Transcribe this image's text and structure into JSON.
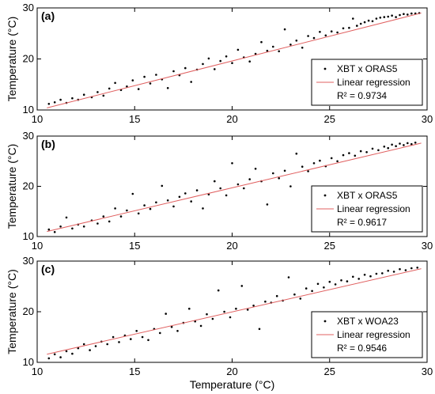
{
  "colors": {
    "points": "#000000",
    "regression": "#e06060",
    "frame": "#000000"
  },
  "chart_data": [
    {
      "type": "scatter",
      "panel_label": "(a)",
      "ylabel": "Temperature (°C)",
      "xlabel": "",
      "xlim": [
        10,
        30
      ],
      "ylim": [
        10,
        30
      ],
      "xticks": [
        "10",
        "15",
        "20",
        "25",
        "30"
      ],
      "yticks": [
        "10",
        "20",
        "30"
      ],
      "legend_position": "bottom-right",
      "series": [
        {
          "name": "XBT x ORAS5",
          "kind": "points",
          "points": [
            [
              10.6,
              11.2
            ],
            [
              10.9,
              11.5
            ],
            [
              11.2,
              12.0
            ],
            [
              11.5,
              11.4
            ],
            [
              11.8,
              12.3
            ],
            [
              12.1,
              12.0
            ],
            [
              12.4,
              13.0
            ],
            [
              12.8,
              12.5
            ],
            [
              13.1,
              13.5
            ],
            [
              13.4,
              12.8
            ],
            [
              13.7,
              14.2
            ],
            [
              14.0,
              15.3
            ],
            [
              14.3,
              13.9
            ],
            [
              14.6,
              14.6
            ],
            [
              14.9,
              15.8
            ],
            [
              15.2,
              14.1
            ],
            [
              15.5,
              16.5
            ],
            [
              15.8,
              15.2
            ],
            [
              16.1,
              16.9
            ],
            [
              16.4,
              16.0
            ],
            [
              16.7,
              14.3
            ],
            [
              17.0,
              17.6
            ],
            [
              17.3,
              16.8
            ],
            [
              17.6,
              18.2
            ],
            [
              17.9,
              15.5
            ],
            [
              18.2,
              17.9
            ],
            [
              18.5,
              19.0
            ],
            [
              18.8,
              20.1
            ],
            [
              19.1,
              18.0
            ],
            [
              19.4,
              19.6
            ],
            [
              19.7,
              20.5
            ],
            [
              20.0,
              19.2
            ],
            [
              20.3,
              21.8
            ],
            [
              20.6,
              20.3
            ],
            [
              20.9,
              19.5
            ],
            [
              21.2,
              21.0
            ],
            [
              21.5,
              23.3
            ],
            [
              21.8,
              21.6
            ],
            [
              22.1,
              22.4
            ],
            [
              22.4,
              21.5
            ],
            [
              22.7,
              25.8
            ],
            [
              23.0,
              22.8
            ],
            [
              23.3,
              23.6
            ],
            [
              23.6,
              22.2
            ],
            [
              23.9,
              24.5
            ],
            [
              24.2,
              24.1
            ],
            [
              24.5,
              25.3
            ],
            [
              24.8,
              24.6
            ],
            [
              25.1,
              25.4
            ],
            [
              25.4,
              25.2
            ],
            [
              25.7,
              26.0
            ],
            [
              26.0,
              26.1
            ],
            [
              26.2,
              27.9
            ],
            [
              26.4,
              26.5
            ],
            [
              26.6,
              26.9
            ],
            [
              26.8,
              27.2
            ],
            [
              27.0,
              27.5
            ],
            [
              27.2,
              27.4
            ],
            [
              27.4,
              27.9
            ],
            [
              27.6,
              28.1
            ],
            [
              27.8,
              28.2
            ],
            [
              28.0,
              28.3
            ],
            [
              28.2,
              28.5
            ],
            [
              28.4,
              28.2
            ],
            [
              28.6,
              28.6
            ],
            [
              28.8,
              28.8
            ],
            [
              29.0,
              28.7
            ],
            [
              29.2,
              28.9
            ],
            [
              29.4,
              28.9
            ],
            [
              29.6,
              29.0
            ]
          ]
        },
        {
          "name": "Linear regression",
          "kind": "line",
          "x": [
            10.5,
            29.7
          ],
          "y": [
            10.4,
            29.0
          ]
        }
      ],
      "annotation": "R² = 0.9734"
    },
    {
      "type": "scatter",
      "panel_label": "(b)",
      "ylabel": "Temperature (°C)",
      "xlabel": "",
      "xlim": [
        10,
        30
      ],
      "ylim": [
        10,
        30
      ],
      "xticks": [
        "10",
        "15",
        "20",
        "25",
        "30"
      ],
      "yticks": [
        "10",
        "20",
        "30"
      ],
      "legend_position": "bottom-right",
      "series": [
        {
          "name": "XBT x ORAS5",
          "kind": "points",
          "points": [
            [
              10.6,
              11.4
            ],
            [
              10.9,
              10.9
            ],
            [
              11.2,
              12.0
            ],
            [
              11.5,
              13.8
            ],
            [
              11.8,
              11.6
            ],
            [
              12.1,
              12.4
            ],
            [
              12.4,
              12.0
            ],
            [
              12.8,
              13.2
            ],
            [
              13.1,
              12.6
            ],
            [
              13.4,
              14.0
            ],
            [
              13.7,
              13.0
            ],
            [
              14.0,
              15.6
            ],
            [
              14.3,
              14.0
            ],
            [
              14.6,
              15.2
            ],
            [
              14.9,
              18.5
            ],
            [
              15.2,
              14.6
            ],
            [
              15.5,
              16.2
            ],
            [
              15.8,
              15.5
            ],
            [
              16.1,
              16.8
            ],
            [
              16.4,
              20.1
            ],
            [
              16.7,
              17.2
            ],
            [
              17.0,
              16.0
            ],
            [
              17.3,
              17.9
            ],
            [
              17.6,
              18.6
            ],
            [
              17.9,
              17.0
            ],
            [
              18.2,
              19.2
            ],
            [
              18.5,
              15.6
            ],
            [
              18.8,
              18.4
            ],
            [
              19.1,
              21.0
            ],
            [
              19.4,
              19.6
            ],
            [
              19.7,
              18.2
            ],
            [
              20.0,
              24.6
            ],
            [
              20.3,
              20.4
            ],
            [
              20.6,
              19.6
            ],
            [
              20.9,
              21.4
            ],
            [
              21.2,
              23.5
            ],
            [
              21.5,
              21.0
            ],
            [
              21.8,
              16.4
            ],
            [
              22.1,
              22.6
            ],
            [
              22.4,
              21.6
            ],
            [
              22.7,
              23.1
            ],
            [
              23.0,
              20.0
            ],
            [
              23.3,
              26.5
            ],
            [
              23.6,
              23.9
            ],
            [
              23.9,
              23.0
            ],
            [
              24.2,
              24.6
            ],
            [
              24.5,
              25.1
            ],
            [
              24.8,
              24.0
            ],
            [
              25.1,
              25.6
            ],
            [
              25.4,
              25.0
            ],
            [
              25.7,
              26.2
            ],
            [
              26.0,
              26.6
            ],
            [
              26.3,
              26.1
            ],
            [
              26.6,
              27.0
            ],
            [
              26.9,
              26.8
            ],
            [
              27.2,
              27.5
            ],
            [
              27.5,
              27.2
            ],
            [
              27.8,
              27.9
            ],
            [
              28.0,
              27.6
            ],
            [
              28.2,
              28.3
            ],
            [
              28.4,
              28.0
            ],
            [
              28.6,
              28.5
            ],
            [
              28.8,
              28.2
            ],
            [
              29.0,
              28.6
            ],
            [
              29.2,
              28.4
            ],
            [
              29.4,
              28.7
            ]
          ]
        },
        {
          "name": "Linear regression",
          "kind": "line",
          "x": [
            10.5,
            29.7
          ],
          "y": [
            11.0,
            28.6
          ]
        }
      ],
      "annotation": "R² = 0.9617"
    },
    {
      "type": "scatter",
      "panel_label": "(c)",
      "ylabel": "Temperature (°C)",
      "xlabel": "Temperature (°C)",
      "xlim": [
        10,
        30
      ],
      "ylim": [
        10,
        30
      ],
      "xticks": [
        "10",
        "15",
        "20",
        "25",
        "30"
      ],
      "yticks": [
        "10",
        "20",
        "30"
      ],
      "legend_position": "bottom-right",
      "series": [
        {
          "name": "XBT x WOA23",
          "kind": "points",
          "points": [
            [
              10.6,
              10.8
            ],
            [
              10.9,
              11.6
            ],
            [
              11.2,
              11.0
            ],
            [
              11.5,
              12.2
            ],
            [
              11.8,
              11.7
            ],
            [
              12.1,
              12.8
            ],
            [
              12.4,
              13.6
            ],
            [
              12.7,
              12.4
            ],
            [
              13.0,
              13.2
            ],
            [
              13.3,
              14.1
            ],
            [
              13.6,
              13.6
            ],
            [
              13.9,
              15.0
            ],
            [
              14.2,
              14.0
            ],
            [
              14.5,
              15.3
            ],
            [
              14.8,
              14.6
            ],
            [
              15.1,
              16.2
            ],
            [
              15.4,
              15.0
            ],
            [
              15.7,
              14.4
            ],
            [
              16.0,
              16.6
            ],
            [
              16.3,
              15.8
            ],
            [
              16.6,
              19.6
            ],
            [
              16.9,
              17.0
            ],
            [
              17.2,
              16.2
            ],
            [
              17.5,
              17.8
            ],
            [
              17.8,
              20.6
            ],
            [
              18.1,
              18.1
            ],
            [
              18.4,
              17.2
            ],
            [
              18.7,
              19.5
            ],
            [
              19.0,
              18.6
            ],
            [
              19.3,
              24.2
            ],
            [
              19.6,
              20.0
            ],
            [
              19.9,
              18.9
            ],
            [
              20.2,
              20.6
            ],
            [
              20.5,
              25.1
            ],
            [
              20.8,
              20.4
            ],
            [
              21.1,
              21.2
            ],
            [
              21.4,
              16.6
            ],
            [
              21.7,
              22.0
            ],
            [
              22.0,
              21.8
            ],
            [
              22.3,
              23.1
            ],
            [
              22.6,
              22.2
            ],
            [
              22.9,
              26.8
            ],
            [
              23.2,
              23.4
            ],
            [
              23.5,
              22.6
            ],
            [
              23.8,
              24.6
            ],
            [
              24.1,
              24.1
            ],
            [
              24.4,
              25.5
            ],
            [
              24.7,
              24.8
            ],
            [
              25.0,
              25.9
            ],
            [
              25.3,
              25.4
            ],
            [
              25.6,
              26.2
            ],
            [
              25.9,
              26.0
            ],
            [
              26.2,
              26.9
            ],
            [
              26.5,
              26.5
            ],
            [
              26.8,
              27.3
            ],
            [
              27.1,
              27.0
            ],
            [
              27.4,
              27.5
            ],
            [
              27.7,
              27.6
            ],
            [
              28.0,
              28.1
            ],
            [
              28.3,
              27.9
            ],
            [
              28.6,
              28.4
            ],
            [
              28.9,
              28.2
            ],
            [
              29.2,
              28.6
            ],
            [
              29.5,
              28.7
            ]
          ]
        },
        {
          "name": "Linear regression",
          "kind": "line",
          "x": [
            10.5,
            29.7
          ],
          "y": [
            11.6,
            28.5
          ]
        }
      ],
      "annotation": "R² = 0.9546"
    }
  ]
}
